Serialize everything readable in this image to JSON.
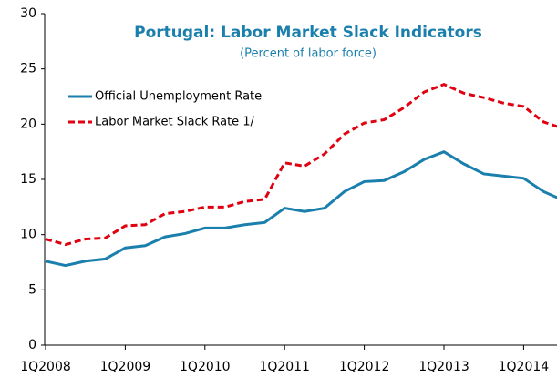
{
  "chart_data": {
    "type": "line",
    "title": "Portugal: Labor Market Slack Indicators",
    "subtitle": "(Percent of labor force)",
    "categories": [
      "1Q2008",
      null,
      null,
      null,
      "1Q2009",
      null,
      null,
      null,
      "1Q2010",
      null,
      null,
      null,
      "1Q2011",
      null,
      null,
      null,
      "1Q2012",
      null,
      null,
      null,
      "1Q2013",
      null,
      null,
      null,
      "1Q2014",
      null,
      null
    ],
    "series": [
      {
        "name": "Official Unemployment  Rate",
        "color": "#1a7fad",
        "dash": false,
        "values": [
          7.6,
          7.2,
          7.6,
          7.8,
          8.8,
          9.0,
          9.8,
          10.1,
          10.6,
          10.6,
          10.9,
          11.1,
          12.4,
          12.1,
          12.4,
          13.9,
          14.8,
          14.9,
          15.7,
          16.8,
          17.5,
          16.4,
          15.5,
          15.3,
          15.1,
          13.9,
          13.1
        ]
      },
      {
        "name": "Labor Market Slack Rate 1/",
        "color": "#e0000f",
        "dash": true,
        "values": [
          9.6,
          9.1,
          9.6,
          9.7,
          10.8,
          10.9,
          11.9,
          12.1,
          12.5,
          12.5,
          13.0,
          13.2,
          16.5,
          16.2,
          17.3,
          19.1,
          20.1,
          20.4,
          21.5,
          22.9,
          23.6,
          22.8,
          22.4,
          21.9,
          21.6,
          20.2,
          19.6
        ]
      }
    ],
    "ylim": [
      0,
      30
    ],
    "yticks": [
      0,
      5,
      10,
      15,
      20,
      25,
      30
    ],
    "grid": false
  }
}
